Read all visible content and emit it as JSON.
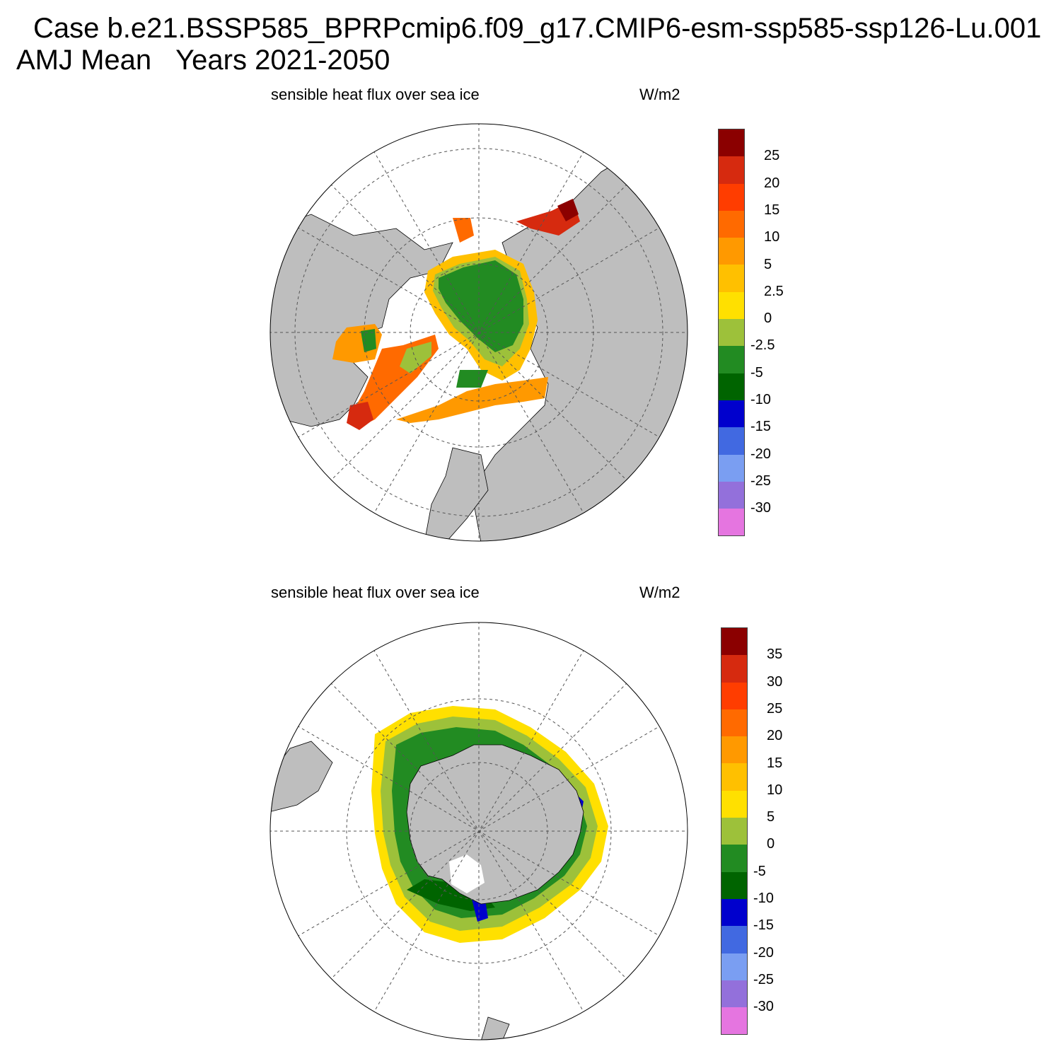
{
  "header": {
    "case_line": "Case b.e21.BSSP585_BPRPcmip6.f09_g17.CMIP6-esm-ssp585-ssp126-Lu.001",
    "mean_label": "AMJ Mean",
    "years_label": "Years 2021-2050"
  },
  "panels": [
    {
      "id": "north",
      "title": "sensible heat flux over sea ice",
      "units": "W/m2",
      "hemisphere": "north-polar-stereographic",
      "colorbar": {
        "labels": [
          "25",
          "20",
          "15",
          "10",
          "5",
          "2.5",
          "0",
          "-2.5",
          "-5",
          "-10",
          "-15",
          "-20",
          "-25",
          "-30"
        ],
        "colors": [
          "#8b0000",
          "#d62a0f",
          "#ff3d00",
          "#ff6a00",
          "#ff9900",
          "#ffc000",
          "#ffe000",
          "#9dc13a",
          "#228b22",
          "#006400",
          "#0000cd",
          "#4169e1",
          "#7a9ef2",
          "#9370db",
          "#e575e0"
        ]
      }
    },
    {
      "id": "south",
      "title": "sensible heat flux over sea ice",
      "units": "W/m2",
      "hemisphere": "south-polar-stereographic",
      "colorbar": {
        "labels": [
          "35",
          "30",
          "25",
          "20",
          "15",
          "10",
          "5",
          "0",
          "-5",
          "-10",
          "-15",
          "-20",
          "-25",
          "-30"
        ],
        "colors": [
          "#8b0000",
          "#d62a0f",
          "#ff3d00",
          "#ff6a00",
          "#ff9900",
          "#ffc000",
          "#ffe000",
          "#9dc13a",
          "#228b22",
          "#006400",
          "#0000cd",
          "#4169e1",
          "#7a9ef2",
          "#9370db",
          "#e575e0"
        ]
      }
    }
  ],
  "style": {
    "land_color": "#bebebe",
    "ocean_color": "#ffffff",
    "grid_color": "#555555"
  }
}
